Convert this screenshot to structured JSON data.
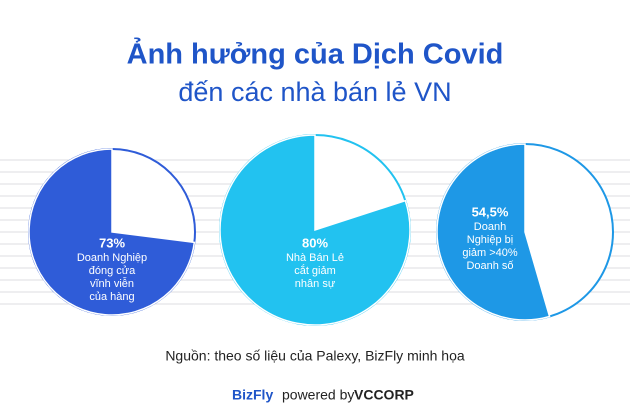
{
  "title": "Ảnh hưởng của Dịch Covid",
  "subtitle": "đến các nhà bán lẻ VN",
  "chart_data": [
    {
      "type": "pie",
      "values": [
        73
      ],
      "value_labels": [
        "73%"
      ],
      "color": "#2f5cd8",
      "description": [
        "Doanh Nghiệp",
        "đóng cửa",
        "vĩnh viễn",
        "của hàng"
      ]
    },
    {
      "type": "pie",
      "values": [
        80
      ],
      "value_labels": [
        "80%"
      ],
      "color": "#22c2f0",
      "description": [
        "Nhà Bán Lẻ",
        "cắt giảm",
        "nhân sự"
      ]
    },
    {
      "type": "pie",
      "values": [
        54.5
      ],
      "value_labels": [
        "54,5%"
      ],
      "color": "#1e98e6",
      "description": [
        "Doanh",
        "Nghiệp bị",
        "giảm >40%",
        "Doanh số"
      ]
    }
  ],
  "source": "Nguồn: theo số liệu của Palexy, BizFly minh họa",
  "footer": {
    "brand": "BizFly",
    "powered": "powered by",
    "partner": "VCCORP"
  }
}
